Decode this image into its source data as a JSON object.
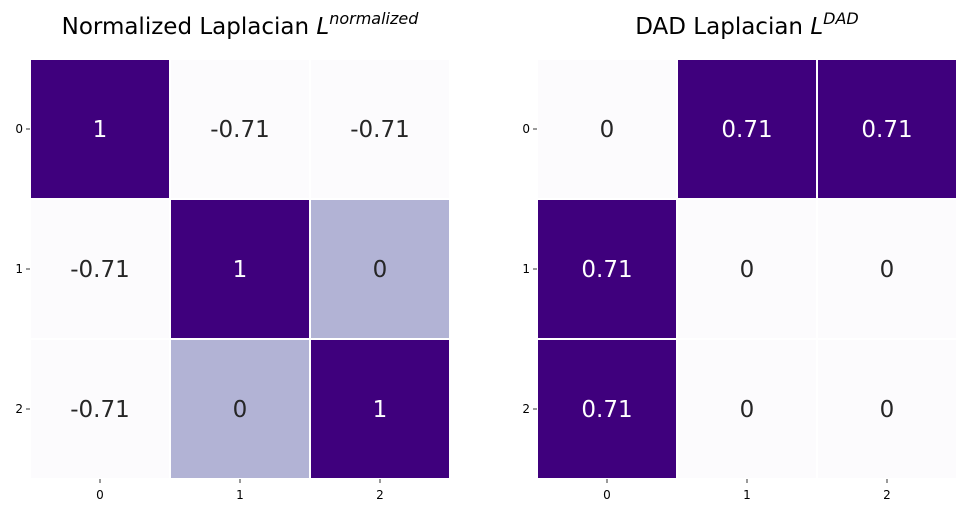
{
  "chart_data": [
    {
      "type": "heatmap",
      "title": {
        "text": "Normalized Laplacian ",
        "math_var": "L",
        "math_sup": "normalized"
      },
      "x_ticks": [
        "0",
        "1",
        "2"
      ],
      "y_ticks": [
        "0",
        "1",
        "2"
      ],
      "matrix": [
        [
          1,
          -0.71,
          -0.71
        ],
        [
          -0.71,
          1,
          0
        ],
        [
          -0.71,
          0,
          1
        ]
      ],
      "labels": [
        [
          "1",
          "-0.71",
          "-0.71"
        ],
        [
          "-0.71",
          "1",
          "0"
        ],
        [
          "-0.71",
          "0",
          "1"
        ]
      ],
      "colormap": "Purples",
      "vmin": -0.71,
      "vmax": 1,
      "cell_colors": [
        [
          "#3f007d",
          "#fcfbfd",
          "#fcfbfd"
        ],
        [
          "#fcfbfd",
          "#3f007d",
          "#b2b3d5"
        ],
        [
          "#fcfbfd",
          "#b2b3d5",
          "#3f007d"
        ]
      ],
      "colorbar": false,
      "grid_line_color": "#ffffff"
    },
    {
      "type": "heatmap",
      "title": {
        "text": "DAD Laplacian ",
        "math_var": "L",
        "math_sup": "DAD"
      },
      "x_ticks": [
        "0",
        "1",
        "2"
      ],
      "y_ticks": [
        "0",
        "1",
        "2"
      ],
      "matrix": [
        [
          0,
          0.71,
          0.71
        ],
        [
          0.71,
          0,
          0
        ],
        [
          0.71,
          0,
          0
        ]
      ],
      "labels": [
        [
          "0",
          "0.71",
          "0.71"
        ],
        [
          "0.71",
          "0",
          "0"
        ],
        [
          "0.71",
          "0",
          "0"
        ]
      ],
      "colormap": "Purples",
      "vmin": 0,
      "vmax": 0.71,
      "cell_colors": [
        [
          "#fcfbfd",
          "#3f007d",
          "#3f007d"
        ],
        [
          "#3f007d",
          "#fcfbfd",
          "#fcfbfd"
        ],
        [
          "#3f007d",
          "#fcfbfd",
          "#fcfbfd"
        ]
      ],
      "colorbar": false,
      "grid_line_color": "#ffffff"
    }
  ]
}
